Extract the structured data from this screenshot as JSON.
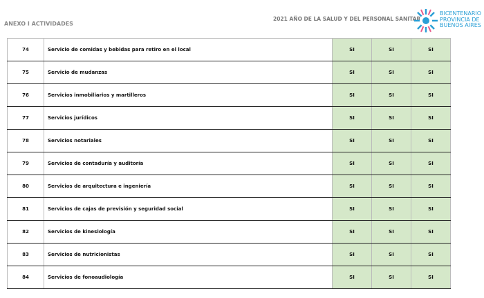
{
  "header": {
    "left": "ANEXO I ACTIVIDADES",
    "center": "2021 AÑO DE LA SALUD Y DEL PERSONAL SANITARIO",
    "brand": [
      "BICENTENARIO",
      "PROVINCIA DE",
      "BUENOS AIRES"
    ]
  },
  "table": {
    "rows": [
      [
        "74",
        "Servicio de comidas y bebidas para retiro en el local",
        "SI",
        "SI",
        "SI"
      ],
      [
        "75",
        "Servicio de mudanzas",
        "SI",
        "SI",
        "SI"
      ],
      [
        "76",
        "Servicios inmobiliarios y martilleros",
        "SI",
        "SI",
        "SI"
      ],
      [
        "77",
        "Servicios jurídicos",
        "SI",
        "SI",
        "SI"
      ],
      [
        "78",
        "Servicios notariales",
        "SI",
        "SI",
        "SI"
      ],
      [
        "79",
        "Servicios de contaduría y auditoría",
        "SI",
        "SI",
        "SI"
      ],
      [
        "80",
        "Servicios de arquitectura e ingeniería",
        "SI",
        "SI",
        "SI"
      ],
      [
        "81",
        "Servicios de cajas de previsión y seguridad social",
        "SI",
        "SI",
        "SI"
      ],
      [
        "82",
        "Servicios de kinesiología",
        "SI",
        "SI",
        "SI"
      ],
      [
        "83",
        "Servicios de nutricionistas",
        "SI",
        "SI",
        "SI"
      ],
      [
        "84",
        "Servicios de fonoaudiología",
        "SI",
        "SI",
        "SI"
      ]
    ]
  }
}
